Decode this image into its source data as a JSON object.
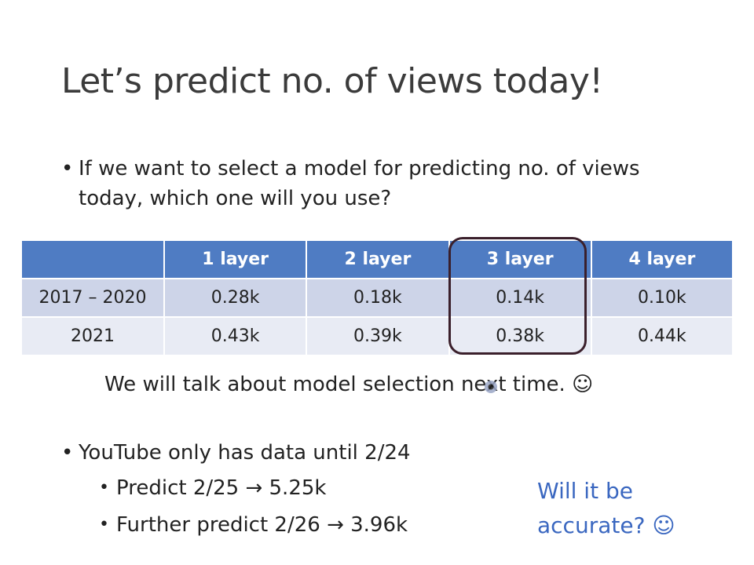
{
  "title": "Let’s predict no. of views today!",
  "bullet_glyph": "•",
  "bullet1": "If we want to select a model for predicting no. of views today, which one will you use?",
  "table": {
    "headers": [
      "",
      "1 layer",
      "2 layer",
      "3 layer",
      "4 layer"
    ],
    "rows": [
      {
        "label": "2017 – 2020",
        "values": [
          "0.28k",
          "0.18k",
          "0.14k",
          "0.10k"
        ]
      },
      {
        "label": "2021",
        "values": [
          "0.43k",
          "0.39k",
          "0.38k",
          "0.44k"
        ]
      }
    ],
    "highlighted_column": "3 layer",
    "highlight_color": "#3a1f2b",
    "header_color": "#4f7cc3"
  },
  "note": "We will talk about model selection next time. ☺",
  "bullet2": "YouTube only has data until 2/24",
  "sub_bullets": [
    "Predict 2/25 → 5.25k",
    "Further predict 2/26 → 3.96k"
  ],
  "question": {
    "line1": "Will it be",
    "line2": "accurate? ☺",
    "color": "#3a67c0"
  }
}
